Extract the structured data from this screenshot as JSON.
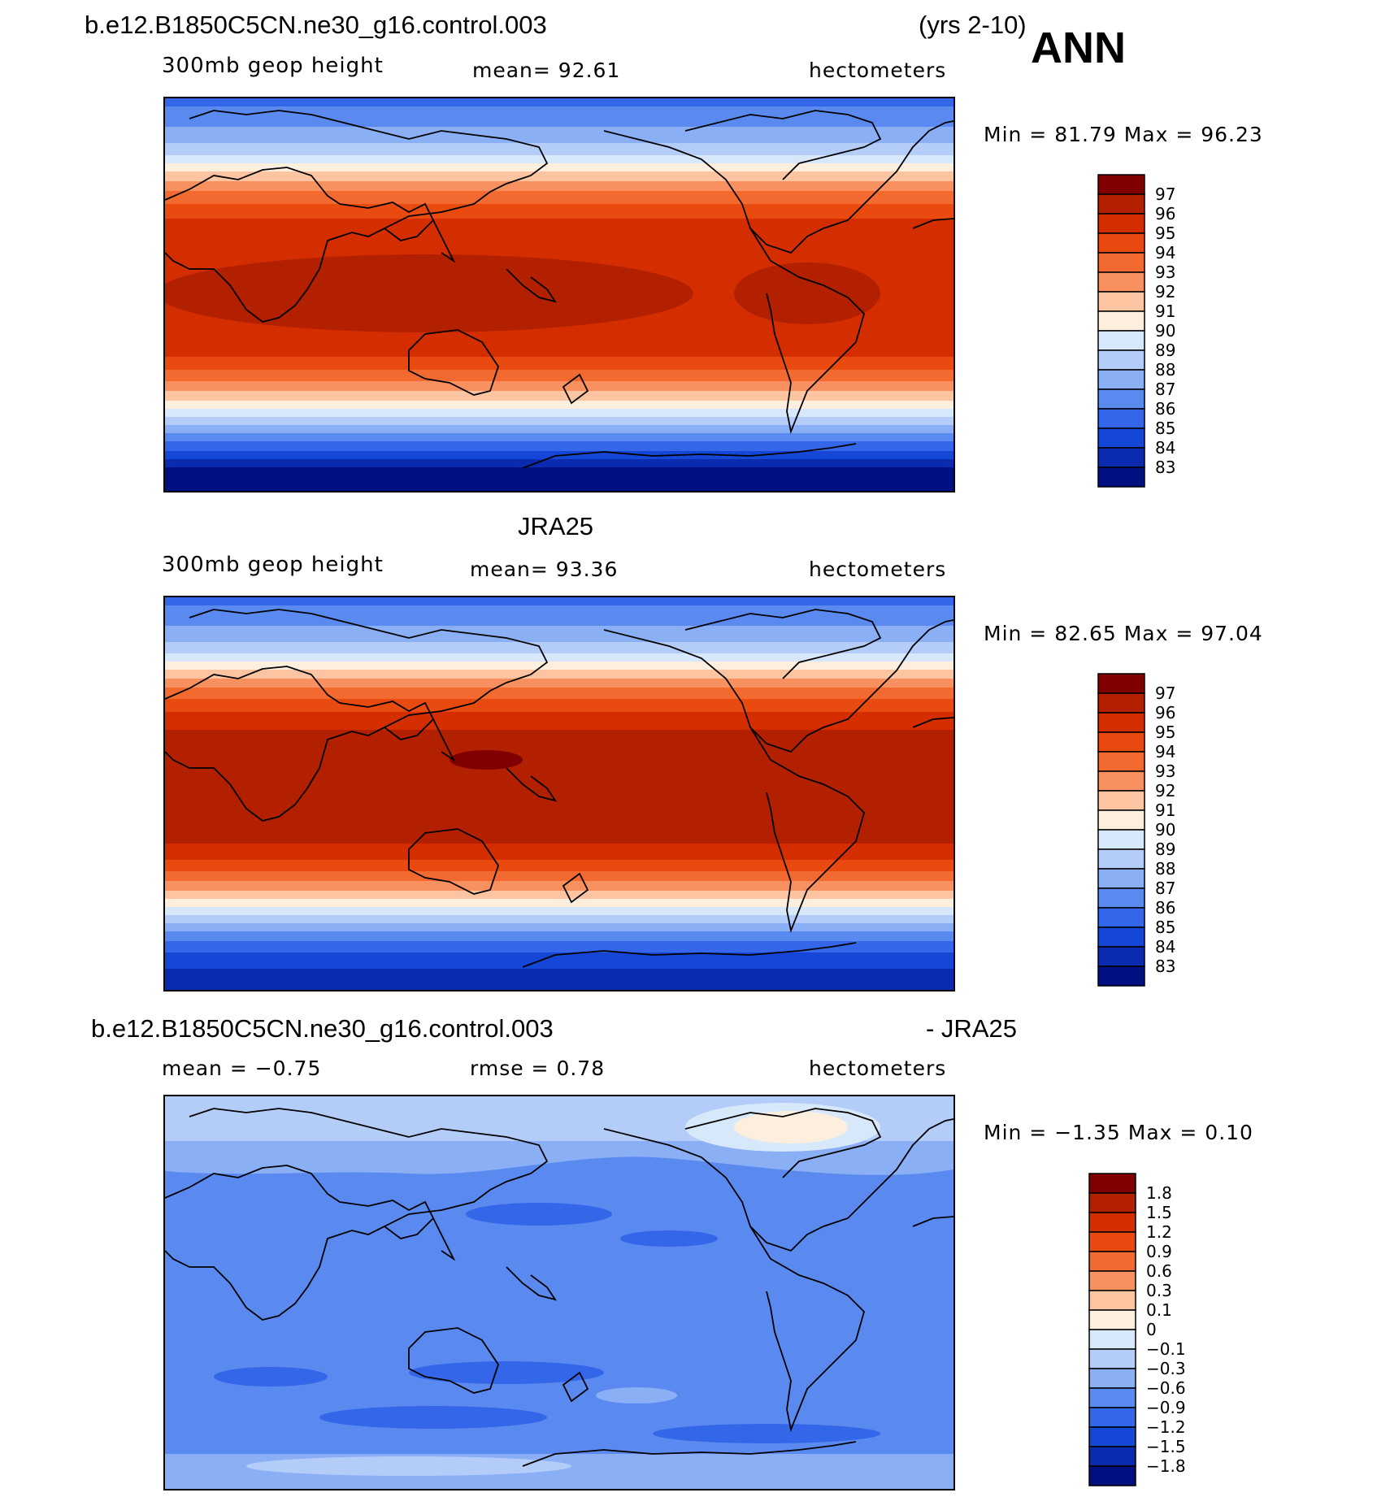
{
  "header": {
    "case_name": "b.e12.B1850C5CN.ne30_g16.control.003",
    "years": "(yrs 2-10)",
    "season": "ANN"
  },
  "panels": [
    {
      "id": "model",
      "title": "",
      "variable": "300mb geop height",
      "stat1": "mean=   92.61",
      "units": "hectometers",
      "minmax": "Min =   81.79  Max =   96.23",
      "palette": "warm-cool",
      "levels": [
        "97",
        "96",
        "95",
        "94",
        "93",
        "92",
        "91",
        "90",
        "89",
        "88",
        "87",
        "86",
        "85",
        "84",
        "83"
      ]
    },
    {
      "id": "obs",
      "title": "JRA25",
      "variable": "300mb geop height",
      "stat1": "mean=   93.36",
      "units": "hectometers",
      "minmax": "Min =   82.65  Max =   97.04",
      "palette": "warm-cool",
      "levels": [
        "97",
        "96",
        "95",
        "94",
        "93",
        "92",
        "91",
        "90",
        "89",
        "88",
        "87",
        "86",
        "85",
        "84",
        "83"
      ]
    },
    {
      "id": "diff",
      "title_left": "b.e12.B1850C5CN.ne30_g16.control.003",
      "title_right": "- JRA25",
      "stat1": "mean =   −0.75",
      "stat2": "rmse =    0.78",
      "units": "hectometers",
      "minmax": "Min =   −1.35  Max =    0.10",
      "palette": "diverging",
      "levels": [
        "1.8",
        "1.5",
        "1.2",
        "0.9",
        "0.6",
        "0.3",
        "0.1",
        "0",
        "−0.1",
        "−0.3",
        "−0.6",
        "−0.9",
        "−1.2",
        "−1.5",
        "−1.8"
      ]
    }
  ],
  "colors": {
    "label_bar_16": [
      "#800000",
      "#B22000",
      "#D42E00",
      "#E84A10",
      "#F36A30",
      "#F89060",
      "#FCC4A0",
      "#FDEEDD",
      "#D8E8FB",
      "#B4CDF8",
      "#8AAFF5",
      "#5A8AF0",
      "#3366E8",
      "#1447D6",
      "#0A2BB0",
      "#001080"
    ]
  }
}
